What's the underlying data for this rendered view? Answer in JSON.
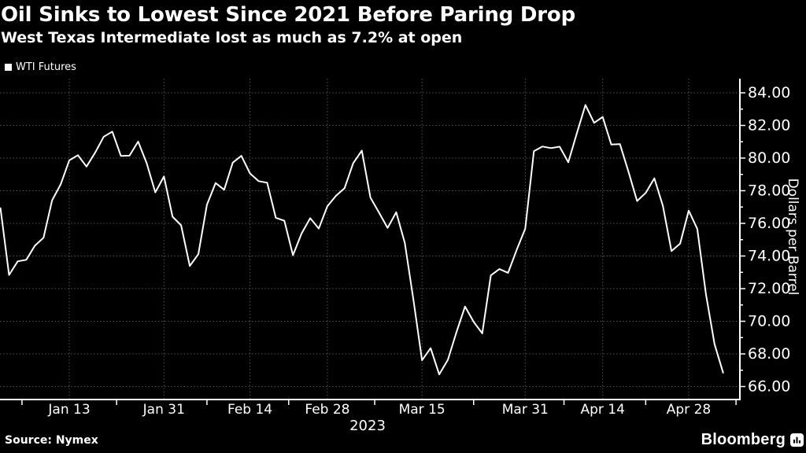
{
  "header": {
    "title": "Oil Sinks to Lowest Since 2021 Before Paring Drop",
    "subtitle": "West Texas Intermediate lost as much as 7.2% at open"
  },
  "legend": {
    "marker": "square",
    "label": "WTI Futures",
    "color": "#ffffff"
  },
  "source": "Source: Nymex",
  "branding": {
    "name": "Bloomberg",
    "icon": "bloomberg-bars-icon"
  },
  "colors": {
    "background": "#000000",
    "line": "#ffffff",
    "grid": "#555555",
    "axis": "#ffffff",
    "text": "#ffffff"
  },
  "chart_data": {
    "type": "line",
    "title": "Oil Sinks to Lowest Since 2021 Before Paring Drop",
    "subtitle": "West Texas Intermediate lost as much as 7.2% at open",
    "ylabel": "Dollars per Barrel",
    "x_axis_year": "2023",
    "grid": "dotted",
    "legend_position": "top-left",
    "ylim": [
      65.2,
      84.9
    ],
    "yticks_major": [
      84,
      82,
      80,
      78,
      76,
      74,
      72,
      70,
      68,
      66
    ],
    "yticks_minor": [
      83,
      81,
      79,
      77,
      75,
      73,
      71,
      69,
      67
    ],
    "xticks": [
      {
        "label": "Jan 13",
        "index": 8
      },
      {
        "label": "Jan 31",
        "index": 19
      },
      {
        "label": "Feb 14",
        "index": 29
      },
      {
        "label": "Feb 28",
        "index": 38
      },
      {
        "label": "Mar 15",
        "index": 49
      },
      {
        "label": "Mar 31",
        "index": 61
      },
      {
        "label": "Apr 14",
        "index": 70
      },
      {
        "label": "Apr 28",
        "index": 80
      }
    ],
    "xticks_minor_indices": [
      2.5,
      13.5,
      24,
      33.5,
      43.5,
      55,
      65.5,
      75,
      85.5
    ],
    "series": [
      {
        "name": "WTI Futures",
        "unit": "USD per barrel",
        "dates": [
          "2023-01-03",
          "2023-01-04",
          "2023-01-05",
          "2023-01-06",
          "2023-01-09",
          "2023-01-10",
          "2023-01-11",
          "2023-01-12",
          "2023-01-13",
          "2023-01-17",
          "2023-01-18",
          "2023-01-19",
          "2023-01-20",
          "2023-01-23",
          "2023-01-24",
          "2023-01-25",
          "2023-01-26",
          "2023-01-27",
          "2023-01-30",
          "2023-01-31",
          "2023-02-01",
          "2023-02-02",
          "2023-02-03",
          "2023-02-06",
          "2023-02-07",
          "2023-02-08",
          "2023-02-09",
          "2023-02-10",
          "2023-02-13",
          "2023-02-14",
          "2023-02-15",
          "2023-02-16",
          "2023-02-17",
          "2023-02-21",
          "2023-02-22",
          "2023-02-23",
          "2023-02-24",
          "2023-02-27",
          "2023-02-28",
          "2023-03-01",
          "2023-03-02",
          "2023-03-03",
          "2023-03-06",
          "2023-03-07",
          "2023-03-08",
          "2023-03-09",
          "2023-03-10",
          "2023-03-13",
          "2023-03-14",
          "2023-03-15",
          "2023-03-16",
          "2023-03-17",
          "2023-03-20",
          "2023-03-21",
          "2023-03-22",
          "2023-03-23",
          "2023-03-24",
          "2023-03-27",
          "2023-03-28",
          "2023-03-29",
          "2023-03-30",
          "2023-03-31",
          "2023-04-03",
          "2023-04-04",
          "2023-04-05",
          "2023-04-06",
          "2023-04-10",
          "2023-04-11",
          "2023-04-12",
          "2023-04-13",
          "2023-04-14",
          "2023-04-17",
          "2023-04-18",
          "2023-04-19",
          "2023-04-20",
          "2023-04-21",
          "2023-04-24",
          "2023-04-25",
          "2023-04-26",
          "2023-04-27",
          "2023-04-28",
          "2023-05-01",
          "2023-05-02",
          "2023-05-03",
          "2023-05-04"
        ],
        "values": [
          76.93,
          72.84,
          73.67,
          73.77,
          74.63,
          75.12,
          77.41,
          78.39,
          79.86,
          80.18,
          79.48,
          80.33,
          81.31,
          81.62,
          80.13,
          80.15,
          81.01,
          79.68,
          77.9,
          78.87,
          76.41,
          75.88,
          73.39,
          74.11,
          77.14,
          78.47,
          78.06,
          79.72,
          80.14,
          79.06,
          78.59,
          78.49,
          76.34,
          76.16,
          74.05,
          75.39,
          76.32,
          75.68,
          77.05,
          77.69,
          78.16,
          79.68,
          80.46,
          77.58,
          76.66,
          75.72,
          76.68,
          74.8,
          71.33,
          67.61,
          68.35,
          66.74,
          67.64,
          69.33,
          70.9,
          69.96,
          69.26,
          72.81,
          73.2,
          72.97,
          74.37,
          75.67,
          80.42,
          80.71,
          80.61,
          80.7,
          79.74,
          81.53,
          83.26,
          82.16,
          82.52,
          80.83,
          80.86,
          79.16,
          77.37,
          77.87,
          78.76,
          77.07,
          74.3,
          74.76,
          76.78,
          75.66,
          71.66,
          68.6,
          66.85
        ]
      }
    ]
  }
}
